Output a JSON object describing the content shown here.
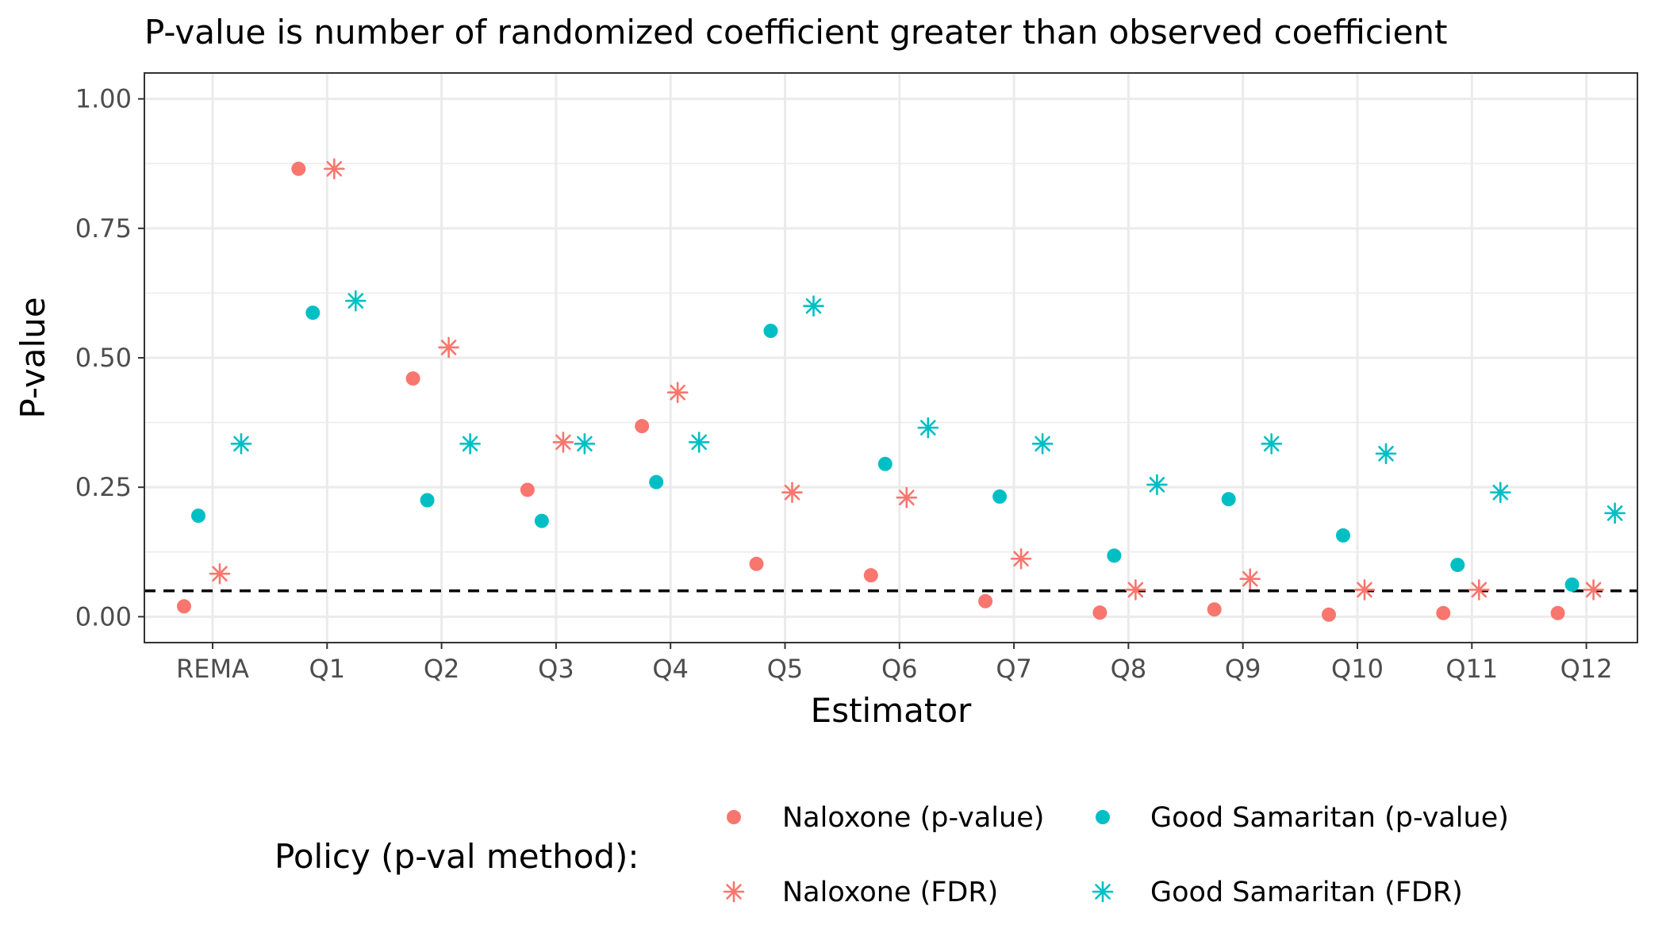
{
  "chart_data": {
    "type": "scatter",
    "title": "P-value is number of randomized coefficient greater than observed coefficient",
    "xlabel": "Estimator",
    "ylabel": "P-value",
    "categories": [
      "REMA",
      "Q1",
      "Q2",
      "Q3",
      "Q4",
      "Q5",
      "Q6",
      "Q7",
      "Q8",
      "Q9",
      "Q10",
      "Q11",
      "Q12"
    ],
    "ylim": [
      -0.05,
      1.05
    ],
    "yticks": [
      0.0,
      0.25,
      0.5,
      0.75,
      1.0
    ],
    "ytick_labels": [
      "0.00",
      "0.25",
      "0.50",
      "0.75",
      "1.00"
    ],
    "reference_line": {
      "y": 0.05,
      "style": "dashed",
      "color": "#000000"
    },
    "grid": true,
    "legend": {
      "title": "Policy (p-val method):",
      "position": "bottom"
    },
    "series": [
      {
        "name": "Naloxone (p-value)",
        "marker": "circle",
        "color": "#F8766D",
        "values": [
          0.02,
          0.865,
          0.46,
          0.245,
          0.368,
          0.102,
          0.08,
          0.03,
          0.008,
          0.014,
          0.004,
          0.007,
          0.007
        ]
      },
      {
        "name": "Good Samaritan (p-value)",
        "marker": "circle",
        "color": "#00BFC4",
        "values": [
          0.195,
          0.587,
          0.225,
          0.185,
          0.26,
          0.552,
          0.295,
          0.232,
          0.118,
          0.227,
          0.157,
          0.1,
          0.062
        ]
      },
      {
        "name": "Naloxone (FDR)",
        "marker": "asterisk",
        "color": "#F8766D",
        "values": [
          0.083,
          0.865,
          0.52,
          0.337,
          0.433,
          0.24,
          0.23,
          0.112,
          0.052,
          0.073,
          0.052,
          0.052,
          0.052
        ]
      },
      {
        "name": "Good Samaritan (FDR)",
        "marker": "asterisk",
        "color": "#00BFC4",
        "values": [
          0.334,
          0.61,
          0.334,
          0.334,
          0.337,
          0.6,
          0.365,
          0.334,
          0.255,
          0.334,
          0.315,
          0.24,
          0.2
        ]
      }
    ]
  }
}
